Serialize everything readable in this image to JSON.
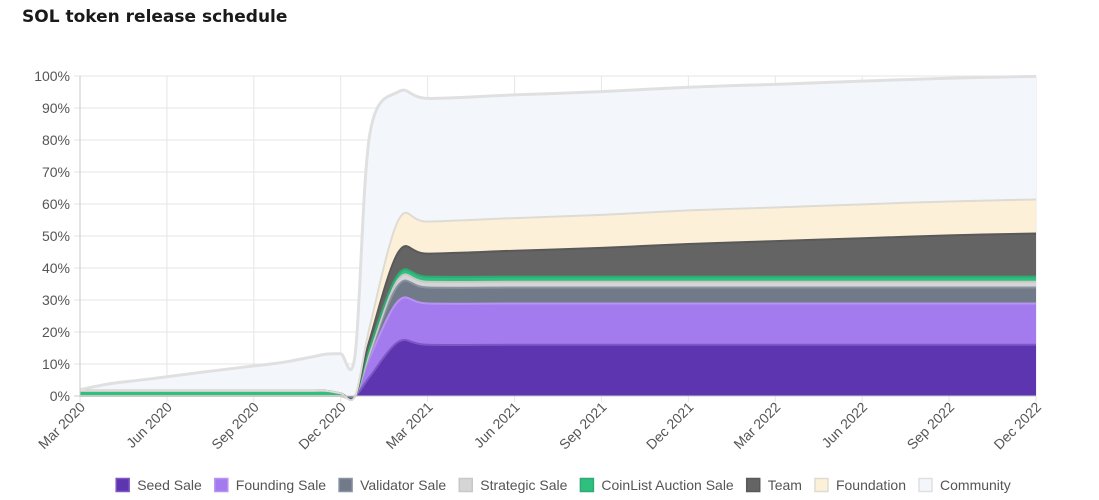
{
  "chart_data": {
    "type": "area",
    "stacked": true,
    "title": "SOL token release schedule",
    "xlabel": "",
    "ylabel": "",
    "ylim": [
      0,
      100
    ],
    "y_ticks": [
      "0%",
      "10%",
      "20%",
      "30%",
      "40%",
      "50%",
      "60%",
      "70%",
      "80%",
      "90%",
      "100%"
    ],
    "x_ticks": [
      "Mar 2020",
      "Jun 2020",
      "Sep 2020",
      "Dec 2020",
      "Mar 2021",
      "Jun 2021",
      "Sep 2021",
      "Dec 2021",
      "Mar 2022",
      "Jun 2022",
      "Sep 2022",
      "Dec 2022"
    ],
    "x": [
      "Mar 2020",
      "Apr 2020",
      "May 2020",
      "Jun 2020",
      "Jul 2020",
      "Aug 2020",
      "Sep 2020",
      "Oct 2020",
      "Nov 2020",
      "Nov 2020",
      "Dec 2020",
      "Dec 2020",
      "Jan 2021",
      "Feb 2021",
      "Mar 2021",
      "Jun 2021",
      "Sep 2021",
      "Dec 2021",
      "Mar 2022",
      "Jun 2022",
      "Sep 2022",
      "Dec 2022"
    ],
    "grid": true,
    "legend_position": "bottom",
    "series": [
      {
        "name": "Seed Sale",
        "color": "#5e35b1",
        "border": "#7e57c2",
        "values": [
          0,
          0,
          0,
          0,
          0,
          0,
          0,
          0,
          0,
          0,
          0,
          0,
          6,
          17,
          16,
          16,
          16,
          16,
          16,
          16,
          16,
          16
        ]
      },
      {
        "name": "Founding Sale",
        "color": "#a47aef",
        "border": "#b894f2",
        "values": [
          0,
          0,
          0,
          0,
          0,
          0,
          0,
          0,
          0,
          0,
          0,
          0,
          6,
          12.8,
          12.9,
          12.9,
          12.9,
          12.9,
          12.9,
          12.9,
          12.9,
          12.9
        ]
      },
      {
        "name": "Validator Sale",
        "color": "#717a89",
        "border": "#8a93a2",
        "values": [
          0,
          0,
          0,
          0,
          0,
          0,
          0,
          0,
          0,
          0,
          0,
          0,
          1,
          5,
          5,
          5,
          5,
          5,
          5,
          5,
          5,
          5
        ]
      },
      {
        "name": "Strategic Sale",
        "color": "#d5d5d5",
        "border": "#c8c8c8",
        "values": [
          0,
          0,
          0,
          0,
          0,
          0,
          0,
          0,
          0,
          0,
          0,
          0,
          0.5,
          1.8,
          1.8,
          1.8,
          1.8,
          1.8,
          1.8,
          1.8,
          1.8,
          1.8
        ]
      },
      {
        "name": "CoinList Auction Sale",
        "color": "#2fbf7f",
        "border": "#2eaa72",
        "values": [
          1.6,
          1.6,
          1.6,
          1.6,
          1.6,
          1.6,
          1.6,
          1.6,
          1.6,
          1.6,
          0.8,
          0,
          1.6,
          1.6,
          1.6,
          1.6,
          1.6,
          1.6,
          1.6,
          1.6,
          1.6,
          1.6
        ]
      },
      {
        "name": "Team",
        "color": "#646464",
        "border": "#595959",
        "values": [
          0,
          0,
          0,
          0,
          0,
          0,
          0,
          0,
          0,
          0,
          0,
          0,
          2.5,
          6.9,
          7.2,
          8.1,
          9.0,
          10.2,
          11.1,
          12.0,
          12.9,
          13.5
        ]
      },
      {
        "name": "Foundation",
        "color": "#fdf0d8",
        "border": "#dedbd4",
        "values": [
          0,
          0,
          0,
          0,
          0,
          0,
          0,
          0,
          0,
          0,
          0,
          0,
          4,
          10,
          10,
          10.2,
          10.3,
          10.5,
          10.5,
          10.6,
          10.6,
          10.6
        ]
      },
      {
        "name": "Community",
        "color": "#f3f7fc",
        "border": "#e0e0e0",
        "values": [
          0.4,
          2.2,
          3.3,
          4.4,
          5.6,
          6.7,
          7.8,
          8.9,
          10.6,
          11.5,
          12.4,
          13.1,
          60,
          40,
          38.5,
          38.5,
          38.5,
          38.5,
          38.5,
          38.5,
          38.5,
          38.5
        ]
      }
    ]
  }
}
